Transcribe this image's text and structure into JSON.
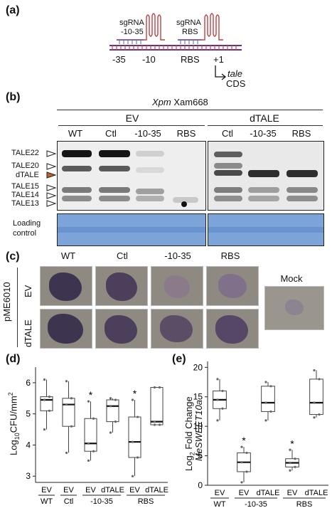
{
  "panel_a": {
    "label": "(a)",
    "sgrna1": "sgRNA",
    "sgrna1_target": "-10-35",
    "sgrna2": "sgRNA",
    "sgrna2_target": "RBS",
    "positions": [
      "-35",
      "-10",
      "RBS",
      "+1"
    ],
    "gene": "tale",
    "cds": "CDS"
  },
  "panel_b": {
    "label": "(b)",
    "strain_italic": "Xpm",
    "strain_name": "Xam668",
    "group1": "EV",
    "group2": "dTALE",
    "lanes_ev": [
      "WT",
      "Ctl",
      "-10-35",
      "RBS"
    ],
    "lanes_dtale": [
      "Ctl",
      "-10-35",
      "RBS"
    ],
    "tales": [
      "TALE22",
      "TALE20",
      "dTALE",
      "TALE15",
      "TALE14",
      "TALE13"
    ],
    "loading_line1": "Loading",
    "loading_line2": "control"
  },
  "panel_c": {
    "label": "(c)",
    "columns": [
      "WT",
      "Ctl",
      "-10-35",
      "RBS"
    ],
    "plasmid": "pME6010",
    "rows": [
      "EV",
      "dTALE"
    ],
    "mock": "Mock"
  },
  "panel_d": {
    "label": "(d)",
    "ylabel": "Log",
    "ylabel_sub": "10",
    "ylabel_rest": "CFU/mm",
    "ylabel_sup": "2",
    "yticks": [
      "6",
      "5",
      "4",
      "3"
    ],
    "xlabels": [
      "EV",
      "EV",
      "EV",
      "dTALE",
      "EV",
      "dTALE"
    ],
    "groups": [
      "WT",
      "Ctl",
      "-10-35",
      "RBS"
    ],
    "star": "*"
  },
  "panel_e": {
    "label": "(e)",
    "ylabel": "Log",
    "ylabel_sub": "2",
    "ylabel_rest": " Fold Change",
    "ylabel_gene": "MeSWEET10a",
    "yticks": [
      "20",
      "15",
      "10",
      "5",
      "0"
    ],
    "xlabels": [
      "EV",
      "EV",
      "dTALE",
      "EV",
      "dTALE"
    ],
    "groups": [
      "WT",
      "-10-35",
      "RBS"
    ],
    "star": "*"
  },
  "chart_data": [
    {
      "type": "box",
      "panel": "d",
      "ylabel": "Log10CFU/mm2",
      "ylim": [
        2.8,
        6.5
      ],
      "categories": [
        "WT EV",
        "Ctl EV",
        "-10-35 EV",
        "-10-35 dTALE",
        "RBS EV",
        "RBS dTALE"
      ],
      "boxes": [
        {
          "min": 4.5,
          "q1": 5.1,
          "median": 5.45,
          "q3": 5.55,
          "max": 6.1,
          "star": false
        },
        {
          "min": 3.75,
          "q1": 4.6,
          "median": 5.3,
          "q3": 5.5,
          "max": 6.05,
          "star": false
        },
        {
          "min": 3.5,
          "q1": 3.8,
          "median": 4.05,
          "q3": 4.85,
          "max": 5.4,
          "star": true
        },
        {
          "min": 4.4,
          "q1": 4.75,
          "median": 5.25,
          "q3": 5.45,
          "max": 5.5,
          "star": false
        },
        {
          "min": 3.0,
          "q1": 3.6,
          "median": 4.1,
          "q3": 4.9,
          "max": 5.45,
          "star": true
        },
        {
          "min": 4.65,
          "q1": 4.65,
          "median": 4.75,
          "q3": 5.85,
          "max": 5.85,
          "star": false
        }
      ]
    },
    {
      "type": "box",
      "panel": "e",
      "ylabel": "Log2 Fold Change MeSWEET10a",
      "ylim": [
        0,
        21
      ],
      "categories": [
        "WT EV",
        "-10-35 EV",
        "-10-35 dTALE",
        "RBS EV",
        "RBS dTALE"
      ],
      "boxes": [
        {
          "min": 11.0,
          "q1": 13.0,
          "median": 14.5,
          "q3": 16.0,
          "max": 18.0,
          "star": false
        },
        {
          "min": 0.5,
          "q1": 2.3,
          "median": 3.9,
          "q3": 5.5,
          "max": 6.5,
          "star": true
        },
        {
          "min": 11.0,
          "q1": 12.5,
          "median": 14.0,
          "q3": 16.8,
          "max": 17.5,
          "star": false
        },
        {
          "min": 2.5,
          "q1": 3.1,
          "median": 3.8,
          "q3": 4.5,
          "max": 6.0,
          "star": true
        },
        {
          "min": 11.5,
          "q1": 12.0,
          "median": 14.0,
          "q3": 18.0,
          "max": 19.5,
          "star": false
        }
      ]
    }
  ]
}
